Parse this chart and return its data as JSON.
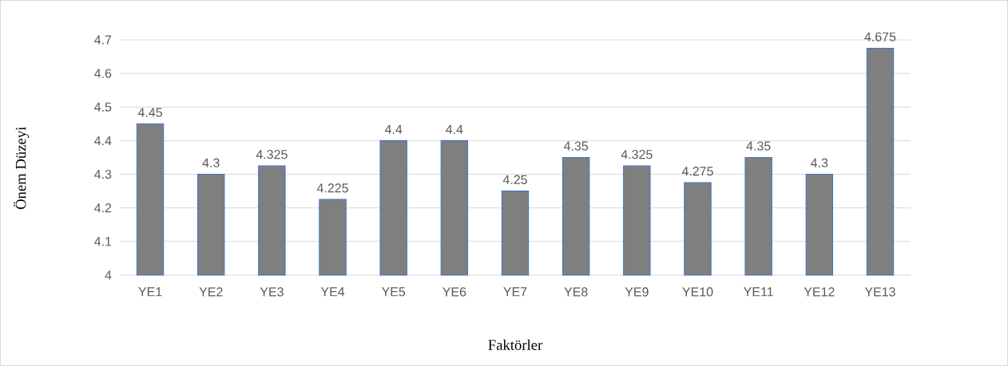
{
  "chart_data": {
    "type": "bar",
    "xlabel": "Faktörler",
    "ylabel": "Önem Düzeyi",
    "categories": [
      "YE1",
      "YE2",
      "YE3",
      "YE4",
      "YE5",
      "YE6",
      "YE7",
      "YE8",
      "YE9",
      "YE10",
      "YE11",
      "YE12",
      "YE13"
    ],
    "values": [
      4.45,
      4.3,
      4.325,
      4.225,
      4.4,
      4.4,
      4.25,
      4.35,
      4.325,
      4.275,
      4.35,
      4.3,
      4.675
    ],
    "color": "#7f7f7f",
    "ylim": [
      4,
      4.7
    ],
    "yticks": [
      4,
      4.1,
      4.2,
      4.3,
      4.4,
      4.5,
      4.6,
      4.7
    ],
    "grid": "y",
    "data_labels": true
  }
}
